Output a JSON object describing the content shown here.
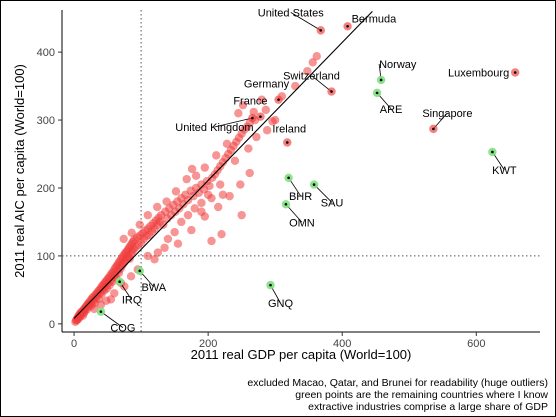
{
  "chart_data": {
    "type": "scatter",
    "xlabel": "2011 real GDP per capita (World=100)",
    "ylabel": "2011 real AIC per capita (World=100)",
    "xlim": [
      -18,
      695
    ],
    "ylim": [
      -12,
      462
    ],
    "xticks": [
      0,
      200,
      400,
      600
    ],
    "yticks": [
      0,
      100,
      200,
      300,
      400
    ],
    "reference_lines": {
      "vertical_x": 100,
      "horizontal_y": 100,
      "style": "dotted"
    },
    "fit_line": {
      "x1": 0,
      "y1": 8,
      "x2": 445,
      "y2": 460
    },
    "grid": false,
    "colors": {
      "default_points": "#f03c3c",
      "extraction_points": "#7fe07f",
      "labeled_center": "#000000",
      "fit_line": "#000000"
    },
    "labeled_points": [
      {
        "label": "Bermuda",
        "x": 408,
        "y": 438,
        "group": "red",
        "label_pos": "above"
      },
      {
        "label": "United States",
        "x": 368,
        "y": 432,
        "group": "red",
        "label_pos": "below-left"
      },
      {
        "label": "Norway",
        "x": 458,
        "y": 359,
        "group": "green",
        "label_pos": "above"
      },
      {
        "label": "Luxembourg",
        "x": 658,
        "y": 370,
        "group": "red",
        "label_pos": "left"
      },
      {
        "label": "Switzerland",
        "x": 384,
        "y": 342,
        "group": "red",
        "label_pos": "above"
      },
      {
        "label": "Germany",
        "x": 305,
        "y": 330,
        "group": "red",
        "label_pos": "above"
      },
      {
        "label": "France",
        "x": 278,
        "y": 305,
        "group": "red",
        "label_pos": "above"
      },
      {
        "label": "ARE",
        "x": 452,
        "y": 340,
        "group": "green",
        "label_pos": "below"
      },
      {
        "label": "United Kingdom",
        "x": 266,
        "y": 303,
        "group": "red",
        "label_pos": "below-left"
      },
      {
        "label": "Singapore",
        "x": 536,
        "y": 287,
        "group": "red",
        "label_pos": "above"
      },
      {
        "label": "Ireland",
        "x": 318,
        "y": 267,
        "group": "red",
        "label_pos": "above"
      },
      {
        "label": "KWT",
        "x": 624,
        "y": 253,
        "group": "green",
        "label_pos": "below"
      },
      {
        "label": "BHR",
        "x": 320,
        "y": 215,
        "group": "green",
        "label_pos": "below"
      },
      {
        "label": "SAU",
        "x": 358,
        "y": 205,
        "group": "green",
        "label_pos": "below"
      },
      {
        "label": "OMN",
        "x": 316,
        "y": 176,
        "group": "green",
        "label_pos": "below"
      },
      {
        "label": "BWA",
        "x": 98,
        "y": 78,
        "group": "green",
        "label_pos": "below"
      },
      {
        "label": "IRQ",
        "x": 68,
        "y": 62,
        "group": "green",
        "label_pos": "below"
      },
      {
        "label": "GNQ",
        "x": 293,
        "y": 57,
        "group": "green",
        "label_pos": "below"
      },
      {
        "label": "COG",
        "x": 40,
        "y": 18,
        "group": "green",
        "label_pos": "below"
      }
    ],
    "series": [
      {
        "group": "red",
        "points": [
          [
            2,
            3
          ],
          [
            3,
            5
          ],
          [
            4,
            6
          ],
          [
            5,
            6
          ],
          [
            5,
            9
          ],
          [
            6,
            10
          ],
          [
            7,
            8
          ],
          [
            7,
            12
          ],
          [
            8,
            14
          ],
          [
            9,
            11
          ],
          [
            10,
            13
          ],
          [
            10,
            17
          ],
          [
            11,
            15
          ],
          [
            12,
            18
          ],
          [
            13,
            12
          ],
          [
            14,
            20
          ],
          [
            15,
            22
          ],
          [
            15,
            16
          ],
          [
            16,
            19
          ],
          [
            17,
            24
          ],
          [
            18,
            26
          ],
          [
            19,
            21
          ],
          [
            20,
            28
          ],
          [
            21,
            30
          ],
          [
            22,
            25
          ],
          [
            23,
            32
          ],
          [
            24,
            29
          ],
          [
            25,
            35
          ],
          [
            26,
            27
          ],
          [
            27,
            38
          ],
          [
            28,
            33
          ],
          [
            29,
            40
          ],
          [
            30,
            36
          ],
          [
            31,
            31
          ],
          [
            32,
            43
          ],
          [
            33,
            39
          ],
          [
            34,
            45
          ],
          [
            35,
            42
          ],
          [
            36,
            48
          ],
          [
            37,
            37
          ],
          [
            38,
            50
          ],
          [
            39,
            46
          ],
          [
            40,
            53
          ],
          [
            41,
            44
          ],
          [
            42,
            56
          ],
          [
            43,
            51
          ],
          [
            44,
            58
          ],
          [
            45,
            49
          ],
          [
            46,
            61
          ],
          [
            47,
            55
          ],
          [
            48,
            63
          ],
          [
            49,
            52
          ],
          [
            50,
            66
          ],
          [
            51,
            60
          ],
          [
            52,
            68
          ],
          [
            53,
            57
          ],
          [
            54,
            71
          ],
          [
            55,
            64
          ],
          [
            56,
            74
          ],
          [
            57,
            62
          ],
          [
            58,
            76
          ],
          [
            59,
            69
          ],
          [
            60,
            80
          ],
          [
            61,
            72
          ],
          [
            62,
            83
          ],
          [
            63,
            67
          ],
          [
            64,
            86
          ],
          [
            65,
            78
          ],
          [
            66,
            89
          ],
          [
            67,
            75
          ],
          [
            68,
            92
          ],
          [
            69,
            81
          ],
          [
            70,
            95
          ],
          [
            71,
            85
          ],
          [
            72,
            98
          ],
          [
            73,
            88
          ],
          [
            74,
            101
          ],
          [
            75,
            91
          ],
          [
            76,
            104
          ],
          [
            77,
            94
          ],
          [
            78,
            106
          ],
          [
            79,
            97
          ],
          [
            80,
            109
          ],
          [
            81,
            100
          ],
          [
            82,
            112
          ],
          [
            83,
            96
          ],
          [
            84,
            115
          ],
          [
            85,
            103
          ],
          [
            86,
            118
          ],
          [
            87,
            107
          ],
          [
            88,
            121
          ],
          [
            89,
            110
          ],
          [
            90,
            124
          ],
          [
            92,
            113
          ],
          [
            94,
            127
          ],
          [
            96,
            116
          ],
          [
            98,
            130
          ],
          [
            100,
            120
          ],
          [
            102,
            133
          ],
          [
            104,
            125
          ],
          [
            106,
            137
          ],
          [
            108,
            129
          ],
          [
            110,
            140
          ],
          [
            112,
            131
          ],
          [
            114,
            144
          ],
          [
            116,
            136
          ],
          [
            118,
            148
          ],
          [
            120,
            140
          ],
          [
            122,
            152
          ],
          [
            124,
            145
          ],
          [
            126,
            156
          ],
          [
            128,
            150
          ],
          [
            130,
            160
          ],
          [
            133,
            146
          ],
          [
            136,
            165
          ],
          [
            139,
            155
          ],
          [
            142,
            170
          ],
          [
            145,
            160
          ],
          [
            148,
            175
          ],
          [
            151,
            165
          ],
          [
            154,
            180
          ],
          [
            157,
            170
          ],
          [
            160,
            185
          ],
          [
            163,
            176
          ],
          [
            166,
            190
          ],
          [
            170,
            182
          ],
          [
            174,
            196
          ],
          [
            178,
            188
          ],
          [
            182,
            200
          ],
          [
            186,
            193
          ],
          [
            190,
            205
          ],
          [
            194,
            198
          ],
          [
            198,
            210
          ],
          [
            202,
            203
          ],
          [
            206,
            215
          ],
          [
            210,
            220
          ],
          [
            214,
            226
          ],
          [
            218,
            232
          ],
          [
            222,
            238
          ],
          [
            226,
            244
          ],
          [
            230,
            250
          ],
          [
            234,
            256
          ],
          [
            238,
            262
          ],
          [
            242,
            268
          ],
          [
            246,
            274
          ],
          [
            250,
            280
          ],
          [
            254,
            286
          ],
          [
            258,
            290
          ],
          [
            262,
            296
          ],
          [
            270,
            300
          ],
          [
            286,
            315
          ],
          [
            310,
            335
          ],
          [
            330,
            350
          ],
          [
            348,
            372
          ],
          [
            356,
            385
          ],
          [
            362,
            394
          ],
          [
            48,
            34
          ],
          [
            55,
            36
          ],
          [
            70,
            60
          ],
          [
            85,
            70
          ],
          [
            95,
            80
          ],
          [
            110,
            100
          ],
          [
            125,
            105
          ],
          [
            140,
            125
          ],
          [
            150,
            135
          ],
          [
            160,
            150
          ],
          [
            170,
            160
          ],
          [
            180,
            170
          ],
          [
            190,
            178
          ],
          [
            200,
            190
          ],
          [
            120,
            95
          ],
          [
            135,
            112
          ],
          [
            60,
            45
          ],
          [
            75,
            55
          ],
          [
            30,
            22
          ],
          [
            40,
            28
          ],
          [
            155,
            118
          ],
          [
            175,
            138
          ],
          [
            195,
            158
          ],
          [
            215,
            172
          ],
          [
            232,
            188
          ],
          [
            248,
            205
          ],
          [
            262,
            222
          ],
          [
            228,
            265
          ],
          [
            212,
            248
          ],
          [
            195,
            230
          ],
          [
            182,
            218
          ],
          [
            240,
            240
          ],
          [
            218,
            205
          ],
          [
            205,
            185
          ],
          [
            190,
            165
          ],
          [
            260,
            258
          ],
          [
            272,
            275
          ],
          [
            288,
            285
          ],
          [
            296,
            298
          ],
          [
            250,
            160
          ],
          [
            220,
            132
          ],
          [
            205,
            122
          ],
          [
            222,
            190
          ],
          [
            168,
            213
          ],
          [
            176,
            228
          ],
          [
            110,
            160
          ],
          [
            124,
            172
          ],
          [
            138,
            180
          ],
          [
            152,
            195
          ],
          [
            74,
            125
          ],
          [
            86,
            134
          ],
          [
            98,
            146
          ],
          [
            245,
            310
          ],
          [
            252,
            322
          ],
          [
            268,
            312
          ],
          [
            280,
            330
          ],
          [
            300,
            300
          ]
        ]
      },
      {
        "group": "green",
        "points": []
      }
    ]
  },
  "caption": {
    "line1": "excluded Macao, Qatar, and Brunei for readability (huge outliers)",
    "line2": "green points are the remaining countries where I know",
    "line3": "extractive industries comprise a large share of GDP"
  }
}
